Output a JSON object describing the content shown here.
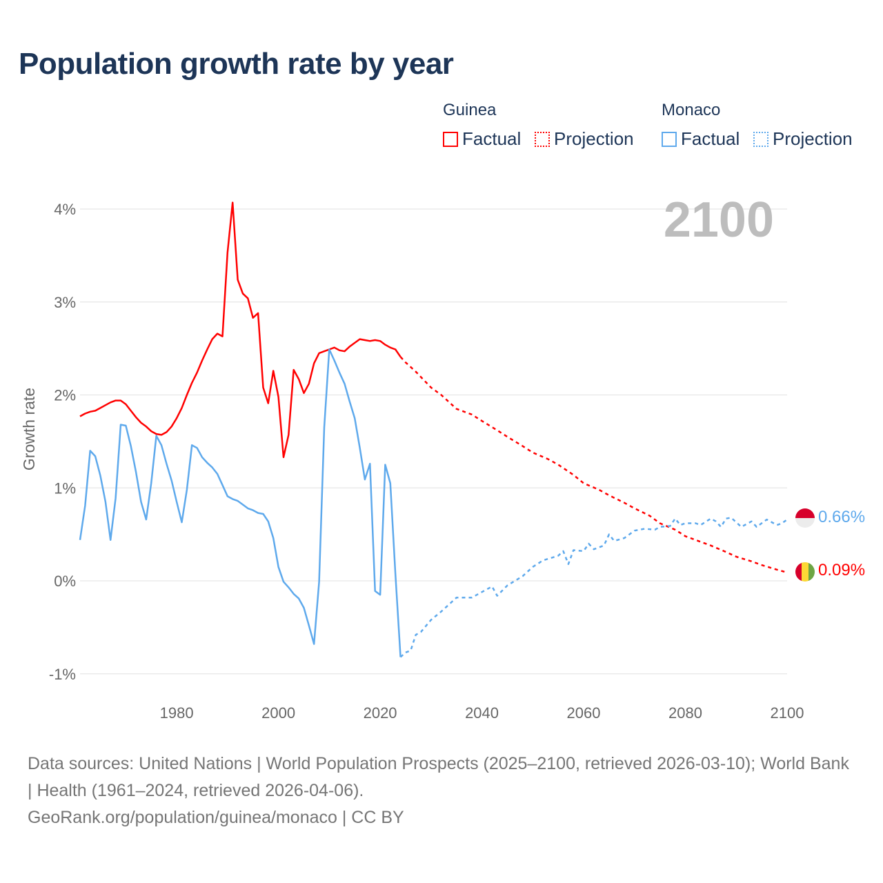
{
  "title": "Population growth rate by year",
  "year_label": "2100",
  "legend": {
    "groups": [
      {
        "name": "Guinea",
        "factual": "Factual",
        "projection": "Projection",
        "color": "#ff0000"
      },
      {
        "name": "Monaco",
        "factual": "Factual",
        "projection": "Projection",
        "color": "#5ea9ec"
      }
    ]
  },
  "end_labels": {
    "monaco": "0.66%",
    "guinea": "0.09%"
  },
  "footer": {
    "sources": "Data sources: United Nations | World Population Prospects (2025–2100, retrieved 2026-03-10); World Bank | Health (1961–2024, retrieved 2026-04-06).",
    "link": "GeoRank.org/population/guinea/monaco | CC BY"
  },
  "chart_data": {
    "type": "line",
    "title": "Population growth rate by year",
    "xlabel": "",
    "ylabel": "Growth rate",
    "xlim": [
      1961,
      2100
    ],
    "ylim": [
      -1.25,
      4.2
    ],
    "x_ticks": [
      1980,
      2000,
      2020,
      2040,
      2060,
      2080,
      2100
    ],
    "y_ticks": [
      {
        "v": 4,
        "label": "4%"
      },
      {
        "v": 3,
        "label": "3%"
      },
      {
        "v": 2,
        "label": "2%"
      },
      {
        "v": 1,
        "label": "1%"
      },
      {
        "v": 0,
        "label": "0%"
      },
      {
        "v": -1,
        "label": "-1%"
      }
    ],
    "grid": true,
    "series": [
      {
        "name": "Guinea Factual",
        "color": "#ff0000",
        "dashed": false,
        "x_start": 1961,
        "values": [
          1.77,
          1.8,
          1.82,
          1.83,
          1.86,
          1.89,
          1.92,
          1.94,
          1.94,
          1.9,
          1.83,
          1.76,
          1.7,
          1.66,
          1.61,
          1.58,
          1.57,
          1.6,
          1.66,
          1.75,
          1.86,
          2.0,
          2.13,
          2.24,
          2.37,
          2.49,
          2.6,
          2.66,
          2.63,
          3.53,
          4.07,
          3.24,
          3.09,
          3.04,
          2.83,
          2.88,
          2.08,
          1.91,
          2.26,
          1.98,
          1.33,
          1.57,
          2.27,
          2.17,
          2.02,
          2.12,
          2.34,
          2.45,
          2.47,
          2.49,
          2.51,
          2.48,
          2.47,
          2.52,
          2.56,
          2.6,
          2.59,
          2.58,
          2.59,
          2.58,
          2.54,
          2.51,
          2.49,
          2.41
        ]
      },
      {
        "name": "Guinea Projection",
        "color": "#ff0000",
        "dashed": true,
        "x": [
          2024,
          2025,
          2027,
          2030,
          2032,
          2035,
          2038,
          2040,
          2043,
          2045,
          2048,
          2050,
          2053,
          2055,
          2058,
          2060,
          2063,
          2065,
          2068,
          2070,
          2073,
          2075,
          2078,
          2080,
          2083,
          2085,
          2088,
          2090,
          2093,
          2095,
          2098,
          2100
        ],
        "values": [
          2.41,
          2.35,
          2.25,
          2.08,
          2.0,
          1.85,
          1.79,
          1.72,
          1.62,
          1.55,
          1.45,
          1.38,
          1.31,
          1.25,
          1.14,
          1.05,
          0.98,
          0.92,
          0.84,
          0.78,
          0.7,
          0.62,
          0.55,
          0.48,
          0.42,
          0.38,
          0.31,
          0.26,
          0.21,
          0.17,
          0.12,
          0.09
        ]
      },
      {
        "name": "Monaco Factual",
        "color": "#5ea9ec",
        "dashed": false,
        "x_start": 1961,
        "values": [
          0.44,
          0.81,
          1.4,
          1.34,
          1.13,
          0.85,
          0.44,
          0.89,
          1.68,
          1.67,
          1.45,
          1.17,
          0.85,
          0.66,
          1.05,
          1.56,
          1.46,
          1.26,
          1.08,
          0.85,
          0.63,
          0.98,
          1.46,
          1.43,
          1.33,
          1.27,
          1.22,
          1.15,
          1.03,
          0.91,
          0.88,
          0.86,
          0.82,
          0.78,
          0.76,
          0.73,
          0.72,
          0.64,
          0.46,
          0.15,
          -0.01,
          -0.07,
          -0.14,
          -0.19,
          -0.29,
          -0.48,
          -0.68,
          -0.01,
          1.65,
          2.49,
          2.37,
          2.24,
          2.12,
          1.93,
          1.75,
          1.43,
          1.09,
          1.26,
          -0.11,
          -0.15,
          1.25,
          1.05,
          0.07,
          -0.82
        ]
      },
      {
        "name": "Monaco Projection",
        "color": "#5ea9ec",
        "dashed": true,
        "x": [
          2024,
          2025,
          2026,
          2027,
          2028,
          2030,
          2032,
          2035,
          2038,
          2040,
          2042,
          2043,
          2045,
          2048,
          2050,
          2052,
          2055,
          2056,
          2057,
          2058,
          2060,
          2061,
          2062,
          2064,
          2065,
          2066,
          2068,
          2070,
          2072,
          2074,
          2075,
          2077,
          2078,
          2079,
          2080,
          2082,
          2083,
          2085,
          2086,
          2087,
          2088,
          2089,
          2091,
          2093,
          2094,
          2095,
          2096,
          2098,
          2099,
          2100
        ],
        "values": [
          -0.82,
          -0.77,
          -0.75,
          -0.58,
          -0.55,
          -0.42,
          -0.33,
          -0.18,
          -0.18,
          -0.12,
          -0.06,
          -0.16,
          -0.05,
          0.05,
          0.15,
          0.22,
          0.27,
          0.32,
          0.18,
          0.33,
          0.32,
          0.4,
          0.34,
          0.38,
          0.5,
          0.43,
          0.46,
          0.54,
          0.56,
          0.55,
          0.58,
          0.59,
          0.67,
          0.6,
          0.62,
          0.62,
          0.6,
          0.67,
          0.64,
          0.58,
          0.67,
          0.68,
          0.58,
          0.64,
          0.58,
          0.62,
          0.66,
          0.6,
          0.62,
          0.66
        ]
      }
    ]
  }
}
